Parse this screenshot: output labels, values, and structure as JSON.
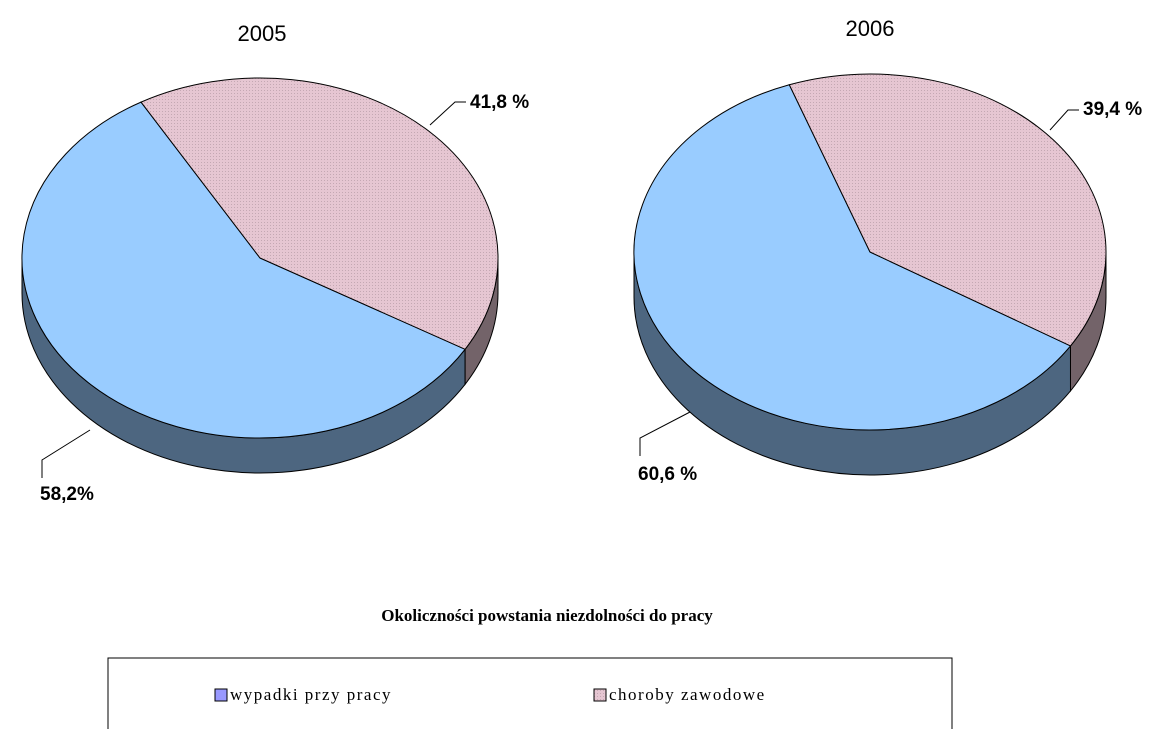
{
  "caption": "Okoliczności powstania niezdolności do pracy",
  "chart_data": [
    {
      "type": "pie",
      "title": "2005",
      "categories": [
        "wypadki przy pracy",
        "choroby zawodowe"
      ],
      "values": [
        58.2,
        41.8
      ],
      "value_labels": [
        "58,2%",
        "41,8 %"
      ],
      "colors": [
        "#99ccff",
        "#e6c6d2"
      ]
    },
    {
      "type": "pie",
      "title": "2006",
      "categories": [
        "wypadki przy pracy",
        "choroby zawodowe"
      ],
      "values": [
        60.6,
        39.4
      ],
      "value_labels": [
        "60,6 %",
        "39,4 %"
      ],
      "colors": [
        "#99ccff",
        "#e6c6d2"
      ]
    }
  ]
}
